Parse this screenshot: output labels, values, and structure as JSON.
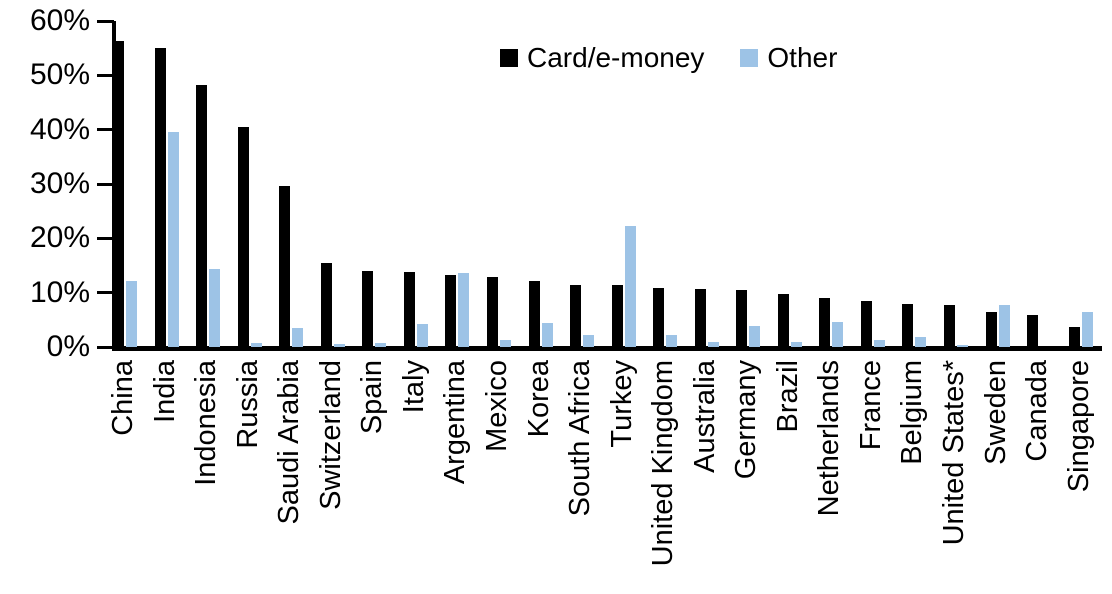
{
  "chart_data": {
    "type": "bar",
    "categories": [
      "China",
      "India",
      "Indonesia",
      "Russia",
      "Saudi Arabia",
      "Switzerland",
      "Spain",
      "Italy",
      "Argentina",
      "Mexico",
      "Korea",
      "South Africa",
      "Turkey",
      "United Kingdom",
      "Australia",
      "Germany",
      "Brazil",
      "Netherlands",
      "France",
      "Belgium",
      "United States*",
      "Sweden",
      "Canada",
      "Singapore"
    ],
    "series": [
      {
        "name": "Card/e-money",
        "color": "#000000",
        "values": [
          56.3,
          55.0,
          48.3,
          40.5,
          29.7,
          15.4,
          14.0,
          13.8,
          13.2,
          12.8,
          12.1,
          11.5,
          11.5,
          10.8,
          10.6,
          10.4,
          9.7,
          9.0,
          8.4,
          8.0,
          7.7,
          6.4,
          5.8,
          3.7
        ]
      },
      {
        "name": "Other",
        "color": "#9DC3E6",
        "values": [
          12.1,
          39.5,
          14.3,
          0.8,
          3.5,
          0.6,
          0.8,
          4.3,
          13.6,
          1.2,
          4.4,
          2.3,
          22.2,
          2.3,
          0.9,
          3.8,
          1.0,
          4.6,
          1.3,
          1.9,
          0.3,
          7.7,
          0,
          6.4
        ]
      }
    ],
    "title": "",
    "xlabel": "",
    "ylabel": "",
    "ylim": [
      0,
      60
    ],
    "ytick_step": 10,
    "ytick_labels": [
      "0%",
      "10%",
      "20%",
      "30%",
      "40%",
      "50%",
      "60%"
    ],
    "legend_position": "top-center",
    "grid": false
  }
}
